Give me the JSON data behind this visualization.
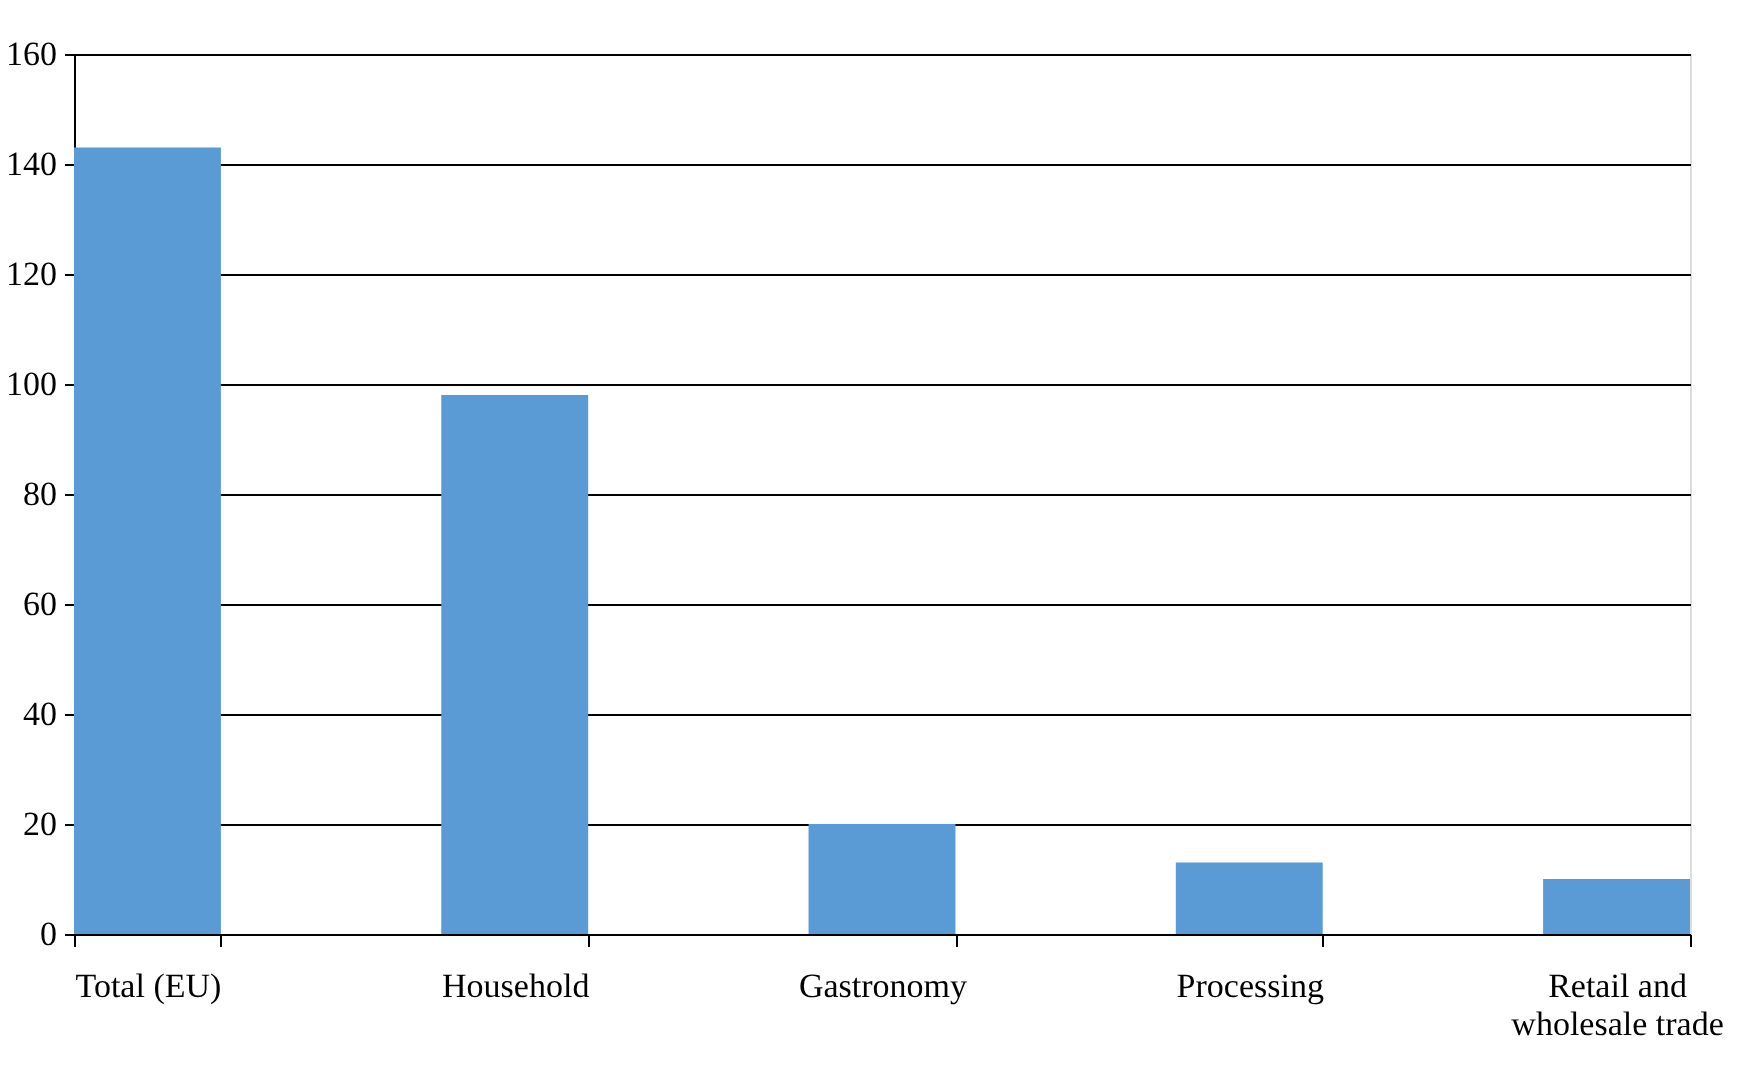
{
  "chart_data": {
    "type": "bar",
    "categories": [
      "Total (EU)",
      "Household",
      "Gastronomy",
      "Processing",
      "Retail and wholesale trade"
    ],
    "values": [
      143,
      98,
      20,
      13,
      10
    ],
    "color": "#5b9bd5",
    "ylim": [
      0,
      160
    ],
    "yticks": [
      0,
      20,
      40,
      60,
      80,
      100,
      120,
      140,
      160
    ],
    "grid": "y"
  }
}
